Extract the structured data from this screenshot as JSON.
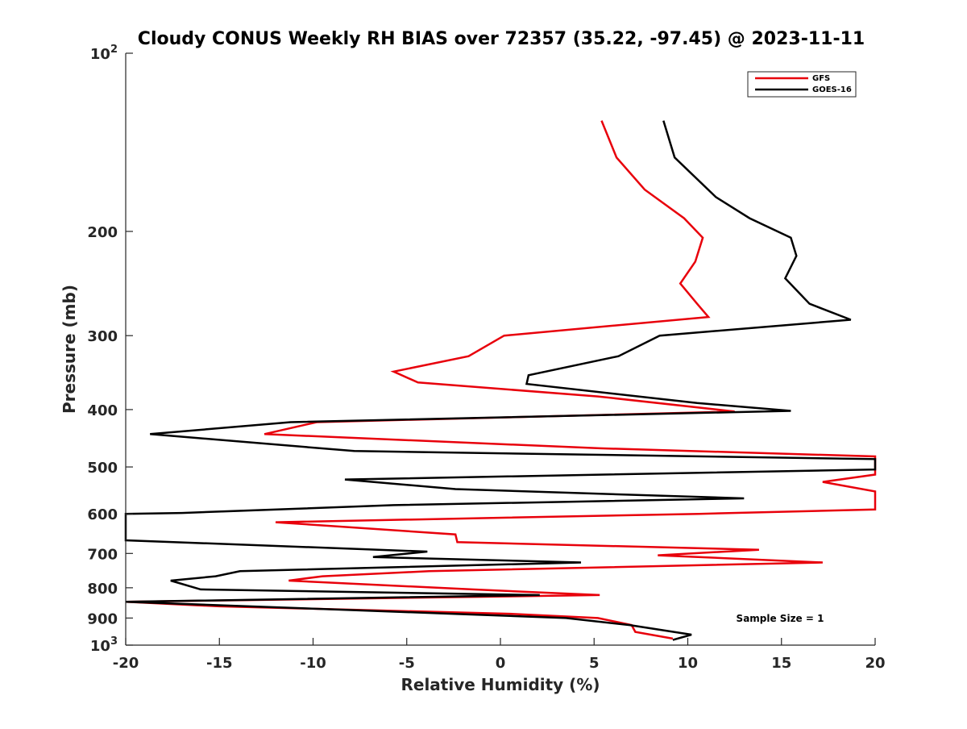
{
  "chart_data": {
    "type": "line",
    "title": "Cloudy CONUS Weekly RH BIAS over 72357 (35.22, -97.45) @ 2023-11-11",
    "xlabel": "Relative Humidity (%)",
    "ylabel": "Pressure (mb)",
    "xlim": [
      -20,
      20
    ],
    "ylim": [
      1000,
      100
    ],
    "y_scale": "log",
    "y_reversed": true,
    "x_ticks": [
      "-20",
      "-15",
      "-10",
      "-5",
      "0",
      "5",
      "10",
      "15",
      "20"
    ],
    "y_ticks": [
      {
        "value": 100,
        "label": "10",
        "sup": "2"
      },
      {
        "value": 200,
        "label": "200",
        "sup": ""
      },
      {
        "value": 300,
        "label": "300",
        "sup": ""
      },
      {
        "value": 400,
        "label": "400",
        "sup": ""
      },
      {
        "value": 500,
        "label": "500",
        "sup": ""
      },
      {
        "value": 600,
        "label": "600",
        "sup": ""
      },
      {
        "value": 700,
        "label": "700",
        "sup": ""
      },
      {
        "value": 800,
        "label": "800",
        "sup": ""
      },
      {
        "value": 900,
        "label": "900",
        "sup": ""
      },
      {
        "value": 1000,
        "label": "10",
        "sup": "3"
      }
    ],
    "grid": false,
    "legend_position": "top-right",
    "annotation": "Sample Size = 1",
    "series": [
      {
        "name": "GFS",
        "color": "#e8000b",
        "points": [
          [
            9.2,
            975
          ],
          [
            7.2,
            950
          ],
          [
            7.0,
            925
          ],
          [
            5.2,
            900
          ],
          [
            0.5,
            885
          ],
          [
            -15.0,
            860
          ],
          [
            -20.0,
            845
          ],
          [
            5.3,
            823
          ],
          [
            -1.5,
            805
          ],
          [
            -11.3,
            778
          ],
          [
            -9.5,
            765
          ],
          [
            -3.8,
            750
          ],
          [
            17.2,
            725
          ],
          [
            8.4,
            705
          ],
          [
            13.8,
            690
          ],
          [
            -2.3,
            670
          ],
          [
            -2.4,
            650
          ],
          [
            -12.0,
            620
          ],
          [
            10.6,
            600
          ],
          [
            20.0,
            590
          ],
          [
            20.0,
            550
          ],
          [
            17.2,
            530
          ],
          [
            20.0,
            515
          ],
          [
            20.0,
            480
          ],
          [
            5.3,
            465
          ],
          [
            -12.6,
            440
          ],
          [
            -9.8,
            420
          ],
          [
            12.5,
            403
          ],
          [
            5.2,
            380
          ],
          [
            -4.4,
            360
          ],
          [
            -5.7,
            345
          ],
          [
            -1.7,
            325
          ],
          [
            0.2,
            300
          ],
          [
            11.1,
            279
          ],
          [
            10.5,
            265
          ],
          [
            9.6,
            245
          ],
          [
            10.4,
            225
          ],
          [
            10.8,
            205
          ],
          [
            9.8,
            190
          ],
          [
            7.7,
            170
          ],
          [
            6.2,
            150
          ],
          [
            5.4,
            130
          ]
        ]
      },
      {
        "name": "GOES-16",
        "color": "#000000",
        "points": [
          [
            9.2,
            980
          ],
          [
            10.2,
            960
          ],
          [
            6.9,
            925
          ],
          [
            3.5,
            900
          ],
          [
            -9.0,
            870
          ],
          [
            -20.0,
            845
          ],
          [
            2.1,
            823
          ],
          [
            -16.0,
            805
          ],
          [
            -17.6,
            778
          ],
          [
            -15.2,
            765
          ],
          [
            -13.9,
            750
          ],
          [
            4.3,
            725
          ],
          [
            -6.8,
            710
          ],
          [
            -3.9,
            695
          ],
          [
            -20.0,
            665
          ],
          [
            -20.0,
            600
          ],
          [
            -17.0,
            598
          ],
          [
            -5.7,
            580
          ],
          [
            13.0,
            565
          ],
          [
            -2.4,
            545
          ],
          [
            -8.3,
            525
          ],
          [
            20.0,
            505
          ],
          [
            20.0,
            485
          ],
          [
            -7.8,
            470
          ],
          [
            -18.7,
            440
          ],
          [
            -11.2,
            420
          ],
          [
            15.5,
            402
          ],
          [
            10.5,
            390
          ],
          [
            1.4,
            362
          ],
          [
            1.5,
            350
          ],
          [
            6.3,
            325
          ],
          [
            8.5,
            300
          ],
          [
            18.7,
            282
          ],
          [
            16.5,
            265
          ],
          [
            15.2,
            240
          ],
          [
            15.8,
            220
          ],
          [
            15.5,
            205
          ],
          [
            13.3,
            190
          ],
          [
            11.5,
            175
          ],
          [
            9.3,
            150
          ],
          [
            8.7,
            130
          ]
        ]
      }
    ]
  }
}
